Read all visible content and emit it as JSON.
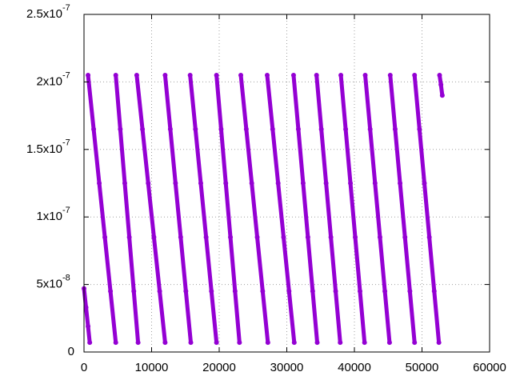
{
  "chart_data": {
    "type": "scatter",
    "color": "#9400d3",
    "grid": true,
    "xlim": [
      0,
      60000
    ],
    "ylim": [
      0,
      2.5e-07
    ],
    "xticks": [
      0,
      10000,
      20000,
      30000,
      40000,
      50000,
      60000
    ],
    "yticks": [
      0,
      {
        "value": 5e-08,
        "label": "5x10",
        "exponent": "-8"
      },
      {
        "value": 1e-07,
        "label": "1x10",
        "exponent": "-7"
      },
      {
        "value": 1.5e-07,
        "label": "1.5x10",
        "exponent": "-7"
      },
      {
        "value": 2e-07,
        "label": "2x10",
        "exponent": "-7"
      },
      {
        "value": 2.5e-07,
        "label": "2.5x10",
        "exponent": "-7"
      }
    ],
    "x": [
      0,
      300,
      600,
      850,
      null,
      600,
      1428,
      2256,
      3085,
      3913,
      4700,
      null,
      4700,
      5367,
      6033,
      6700,
      7366,
      8000,
      null,
      7800,
      8648,
      9497,
      10345,
      11194,
      12000,
      null,
      12000,
      12768,
      13535,
      14303,
      15070,
      15800,
      null,
      15700,
      16488,
      17276,
      18063,
      18851,
      19600,
      null,
      19600,
      20287,
      20974,
      21660,
      22347,
      23000,
      null,
      23200,
      24008,
      24816,
      25624,
      26432,
      27200,
      null,
      27100,
      27908,
      28716,
      29524,
      30332,
      31100,
      null,
      31000,
      31707,
      32414,
      33121,
      33828,
      34500,
      null,
      34400,
      35107,
      35814,
      36521,
      37228,
      37900,
      null,
      38000,
      38707,
      39414,
      40121,
      40828,
      41500,
      null,
      41600,
      42327,
      43054,
      43782,
      44509,
      45200,
      null,
      45300,
      46027,
      46754,
      47482,
      48209,
      48900,
      null,
      48900,
      49627,
      50354,
      51082,
      51809,
      52500,
      null,
      52600,
      52800,
      53000
    ],
    "values": [
      4.7e-08,
      3.3e-08,
      1.9e-08,
      7e-09,
      null,
      2.05e-07,
      1.65e-07,
      1.25e-07,
      8.5e-08,
      4.5e-08,
      7e-09,
      null,
      2.05e-07,
      1.65e-07,
      1.25e-07,
      8.5e-08,
      4.5e-08,
      7e-09,
      null,
      2.05e-07,
      1.65e-07,
      1.25e-07,
      8.5e-08,
      4.5e-08,
      7e-09,
      null,
      2.05e-07,
      1.65e-07,
      1.25e-07,
      8.5e-08,
      4.5e-08,
      7e-09,
      null,
      2.05e-07,
      1.65e-07,
      1.25e-07,
      8.5e-08,
      4.5e-08,
      7e-09,
      null,
      2.05e-07,
      1.65e-07,
      1.25e-07,
      8.5e-08,
      4.5e-08,
      7e-09,
      null,
      2.05e-07,
      1.65e-07,
      1.25e-07,
      8.5e-08,
      4.5e-08,
      7e-09,
      null,
      2.05e-07,
      1.65e-07,
      1.25e-07,
      8.5e-08,
      4.5e-08,
      7e-09,
      null,
      2.05e-07,
      1.65e-07,
      1.25e-07,
      8.5e-08,
      4.5e-08,
      7e-09,
      null,
      2.05e-07,
      1.65e-07,
      1.25e-07,
      8.5e-08,
      4.5e-08,
      7e-09,
      null,
      2.05e-07,
      1.65e-07,
      1.25e-07,
      8.5e-08,
      4.5e-08,
      7e-09,
      null,
      2.05e-07,
      1.65e-07,
      1.25e-07,
      8.5e-08,
      4.5e-08,
      7e-09,
      null,
      2.05e-07,
      1.65e-07,
      1.25e-07,
      8.5e-08,
      4.5e-08,
      7e-09,
      null,
      2.05e-07,
      1.65e-07,
      1.25e-07,
      8.5e-08,
      4.5e-08,
      7e-09,
      null,
      2.05e-07,
      1.98e-07,
      1.9e-07
    ]
  }
}
